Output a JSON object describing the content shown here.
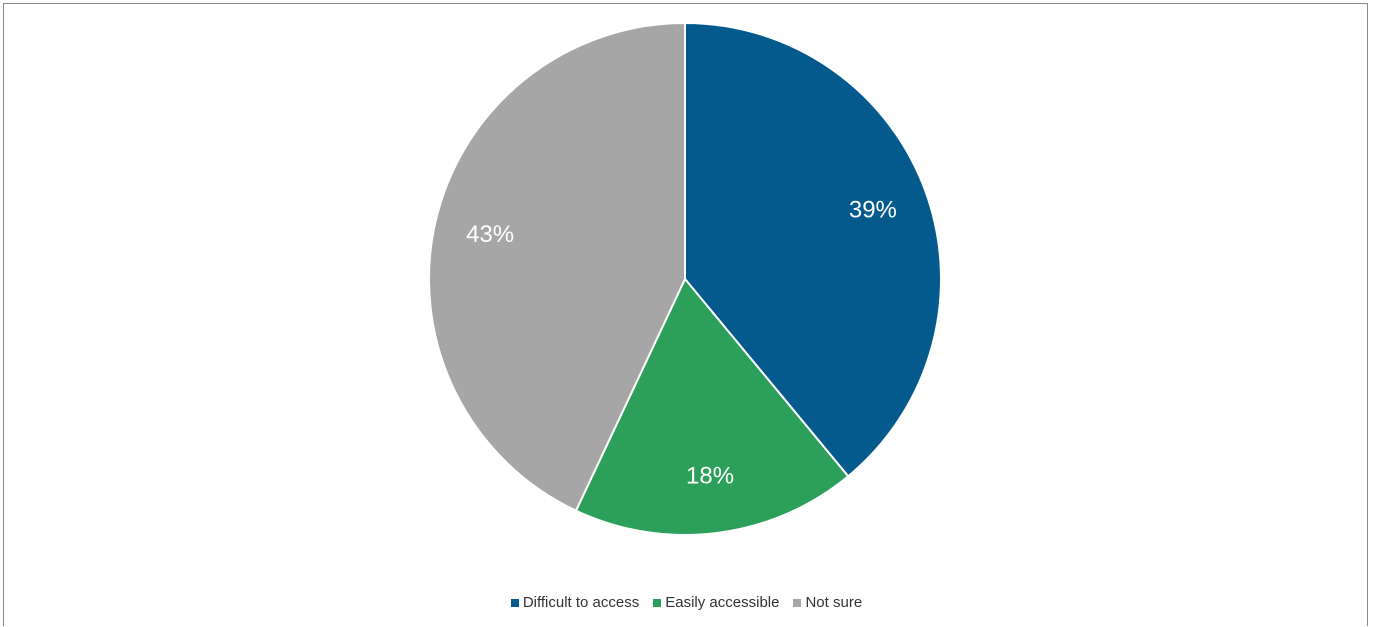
{
  "chart_data": {
    "type": "pie",
    "categories": [
      "Difficult to access",
      "Easily accessible",
      "Not sure"
    ],
    "values": [
      39,
      18,
      43
    ],
    "value_labels": [
      "39%",
      "18%",
      "43%"
    ],
    "colors": [
      "#045a8d",
      "#2ca05a",
      "#a6a6a6"
    ],
    "legend": "bottom-center"
  }
}
